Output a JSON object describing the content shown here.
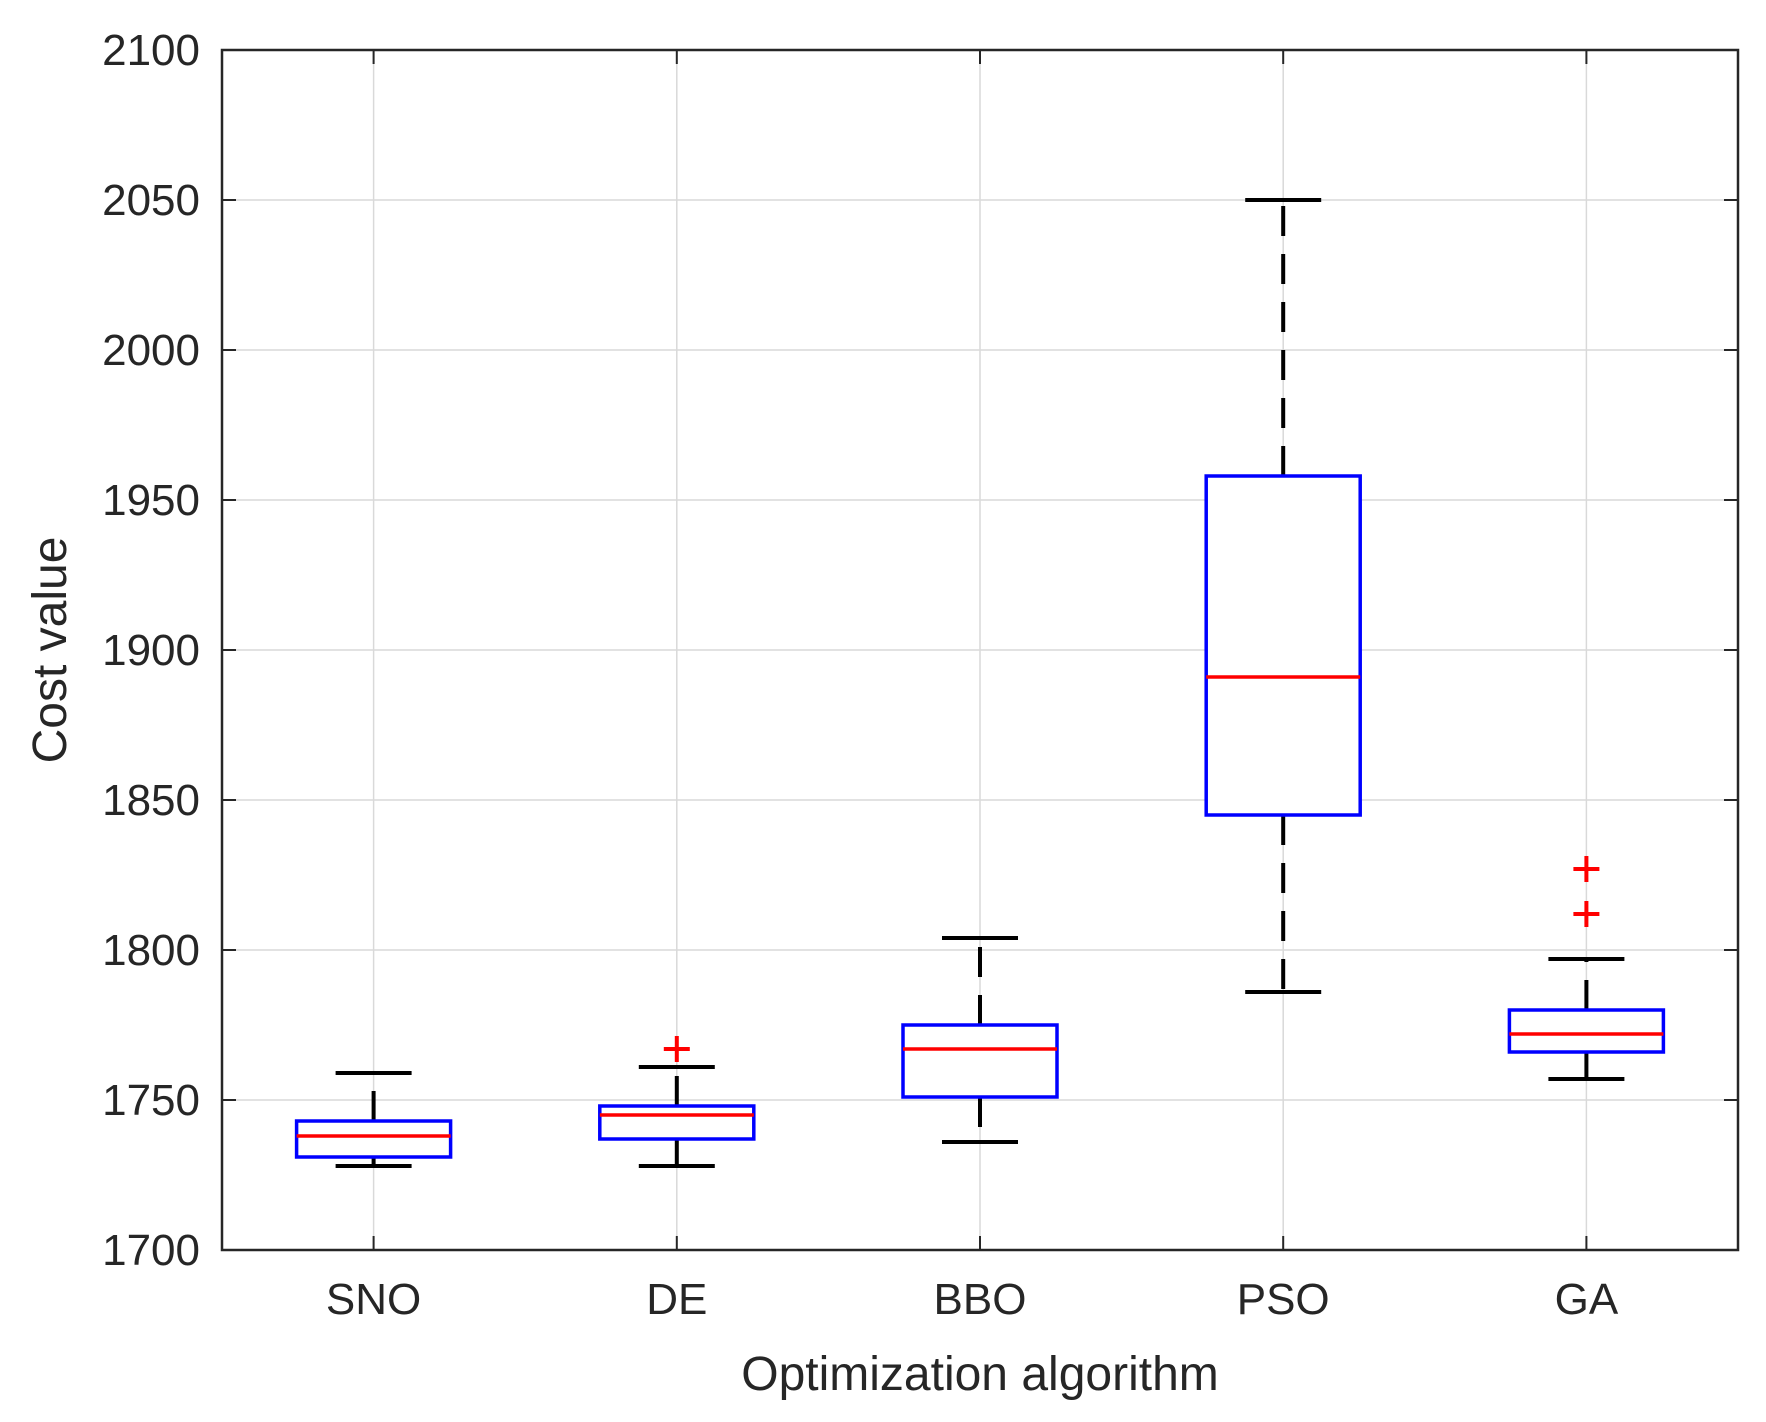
{
  "chart_data": {
    "type": "box",
    "title": "",
    "xlabel": "Optimization algorithm",
    "ylabel": "Cost value",
    "ylim": [
      1700,
      2100
    ],
    "yticks": [
      1700,
      1750,
      1800,
      1850,
      1900,
      1950,
      2000,
      2050,
      2100
    ],
    "grid": true,
    "categories": [
      "SNO",
      "DE",
      "BBO",
      "PSO",
      "GA"
    ],
    "boxes": [
      {
        "name": "SNO",
        "whisker_low": 1728,
        "q1": 1731,
        "median": 1738,
        "q3": 1743,
        "whisker_high": 1759,
        "outliers": []
      },
      {
        "name": "DE",
        "whisker_low": 1728,
        "q1": 1737,
        "median": 1745,
        "q3": 1748,
        "whisker_high": 1761,
        "outliers": [
          1767
        ]
      },
      {
        "name": "BBO",
        "whisker_low": 1736,
        "q1": 1751,
        "median": 1767,
        "q3": 1775,
        "whisker_high": 1804,
        "outliers": []
      },
      {
        "name": "PSO",
        "whisker_low": 1786,
        "q1": 1845,
        "median": 1891,
        "q3": 1958,
        "whisker_high": 2050,
        "outliers": []
      },
      {
        "name": "GA",
        "whisker_low": 1757,
        "q1": 1766,
        "median": 1772,
        "q3": 1780,
        "whisker_high": 1797,
        "outliers": [
          1812,
          1827
        ]
      }
    ],
    "colors": {
      "box": "#0000ff",
      "median": "#ff0000",
      "whisker": "#000000",
      "outlier": "#ff0000",
      "grid": "#d9d9d9",
      "axis": "#262626"
    }
  }
}
